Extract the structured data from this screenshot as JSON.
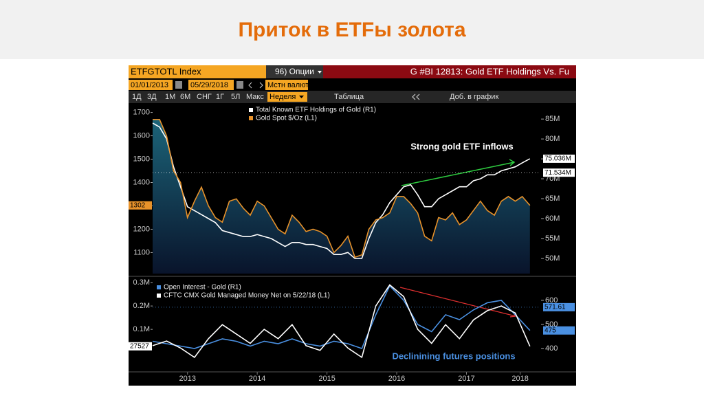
{
  "slide_title": "Приток в ETFы золота",
  "toolbar": {
    "security": "ETFGTOTL Index",
    "options": "96) Опции",
    "chart_title": "G #BI 12813: Gold ETF Holdings Vs. Fu",
    "start_date": "01/01/2013",
    "end_date": "05/29/2018",
    "currency": "Мстн валют",
    "periods": [
      "1Д",
      "3Д",
      "1М",
      "6М",
      "СНГ",
      "1Г",
      "5Л",
      "Макс"
    ],
    "frequency": "Неделя",
    "table": "Таблица",
    "add_to_chart": "Доб. в график"
  },
  "chart_data": [
    {
      "type": "line",
      "xlim": [
        2013,
        2018.55
      ],
      "x": [
        2013.0,
        2013.1,
        2013.2,
        2013.3,
        2013.4,
        2013.5,
        2013.6,
        2013.7,
        2013.8,
        2013.9,
        2014.0,
        2014.1,
        2014.2,
        2014.3,
        2014.4,
        2014.5,
        2014.6,
        2014.7,
        2014.8,
        2014.9,
        2015.0,
        2015.1,
        2015.2,
        2015.3,
        2015.4,
        2015.5,
        2015.6,
        2015.7,
        2015.8,
        2015.9,
        2016.0,
        2016.1,
        2016.2,
        2016.3,
        2016.4,
        2016.5,
        2016.6,
        2016.7,
        2016.8,
        2016.9,
        2017.0,
        2017.1,
        2017.2,
        2017.3,
        2017.4,
        2017.5,
        2017.6,
        2017.7,
        2017.8,
        2017.9,
        2018.0,
        2018.1,
        2018.2,
        2018.3,
        2018.41
      ],
      "series": [
        {
          "name": "Total Known ETF Holdings of Gold (R1)",
          "color": "#ffffff",
          "axis": "y2",
          "values": [
            84,
            83,
            80,
            73,
            68,
            63,
            62,
            61,
            60,
            59,
            57,
            56.5,
            56,
            55.5,
            55.5,
            56,
            55.5,
            55,
            54,
            53,
            54,
            54,
            53.5,
            53.5,
            53,
            52.5,
            51,
            51,
            51.5,
            50,
            50,
            55,
            59,
            61,
            64,
            66,
            68,
            68.5,
            66,
            63,
            63,
            65,
            66,
            67,
            68,
            68,
            69.5,
            70,
            71,
            71,
            72,
            72.5,
            73,
            74,
            75.036
          ]
        },
        {
          "name": "Gold Spot $/Oz (L1)",
          "color": "#e8922a",
          "axis": "y",
          "fill": true,
          "values": [
            1670,
            1670,
            1600,
            1450,
            1400,
            1250,
            1320,
            1380,
            1300,
            1250,
            1230,
            1320,
            1330,
            1290,
            1260,
            1320,
            1300,
            1250,
            1200,
            1180,
            1260,
            1230,
            1190,
            1200,
            1190,
            1170,
            1100,
            1130,
            1170,
            1080,
            1090,
            1200,
            1240,
            1250,
            1270,
            1340,
            1340,
            1310,
            1270,
            1170,
            1150,
            1250,
            1240,
            1270,
            1220,
            1240,
            1280,
            1320,
            1280,
            1260,
            1320,
            1340,
            1320,
            1340,
            1302
          ]
        }
      ],
      "ylim": [
        1010,
        1740
      ],
      "yticks": [
        1100,
        1200,
        1300,
        1400,
        1500,
        1600,
        1700
      ],
      "y2lim": [
        46.2,
        89
      ],
      "y2ticks": [
        {
          "value": 50,
          "label": "50M"
        },
        {
          "value": 55,
          "label": "55M"
        },
        {
          "value": 60,
          "label": "60M"
        },
        {
          "value": 65,
          "label": "65M"
        },
        {
          "value": 70,
          "label": "70M"
        },
        {
          "value": 75,
          "label": "75M"
        },
        {
          "value": 80,
          "label": "80M"
        },
        {
          "value": 85,
          "label": "85M"
        }
      ],
      "last_labels": [
        {
          "value": 1302,
          "label": "1302",
          "axis": "y",
          "color": "#e8922a"
        },
        {
          "value": 75.036,
          "label": "75.036M",
          "axis": "y2",
          "color": "#ffffff"
        },
        {
          "value": 71.534,
          "label": "71.534M",
          "axis": "y2",
          "color": "#ffffff",
          "reference_line": true
        }
      ],
      "annotation": "Strong gold ETF inflows"
    },
    {
      "type": "line",
      "xlim": [
        2013,
        2018.55
      ],
      "x": [
        2013.0,
        2013.2,
        2013.4,
        2013.6,
        2013.8,
        2014.0,
        2014.2,
        2014.4,
        2014.6,
        2014.8,
        2015.0,
        2015.2,
        2015.4,
        2015.6,
        2015.8,
        2016.0,
        2016.2,
        2016.4,
        2016.6,
        2016.8,
        2017.0,
        2017.2,
        2017.4,
        2017.6,
        2017.8,
        2018.0,
        2018.2,
        2018.41
      ],
      "series": [
        {
          "name": "Open Interest - Gold (R1)",
          "color": "#4a90e2",
          "axis": "y2",
          "values": [
            430,
            420,
            410,
            400,
            420,
            440,
            430,
            410,
            430,
            420,
            440,
            420,
            410,
            430,
            420,
            400,
            540,
            660,
            600,
            500,
            470,
            540,
            520,
            560,
            590,
            600,
            540,
            475
          ]
        },
        {
          "name": "CFTC CMX Gold Managed Money Net  on 5/22/18 (L1)",
          "color": "#ffffff",
          "axis": "y",
          "values": [
            0.03,
            0.05,
            0.02,
            -0.02,
            0.06,
            0.12,
            0.08,
            0.04,
            0.1,
            0.06,
            0.12,
            0.03,
            0.01,
            0.08,
            0.02,
            -0.02,
            0.2,
            0.29,
            0.24,
            0.1,
            0.04,
            0.12,
            0.06,
            0.14,
            0.18,
            0.2,
            0.17,
            0.027527
          ]
        }
      ],
      "ylim": [
        -0.079,
        0.318
      ],
      "yticks": [
        {
          "value": 0.1,
          "label": "0.1M"
        },
        {
          "value": 0.2,
          "label": "0.2M"
        },
        {
          "value": 0.3,
          "label": "0.3M"
        }
      ],
      "y2lim": [
        306,
        691
      ],
      "y2ticks": [
        400,
        500,
        600
      ],
      "xticks": [
        {
          "value": 2013.5,
          "label": "2013"
        },
        {
          "value": 2014.5,
          "label": "2014"
        },
        {
          "value": 2015.5,
          "label": "2015"
        },
        {
          "value": 2016.5,
          "label": "2016"
        },
        {
          "value": 2017.5,
          "label": "2017"
        },
        {
          "value": 2018.27,
          "label": "2018"
        }
      ],
      "last_labels": [
        {
          "value": 571.61,
          "label": "571.61",
          "axis": "y2",
          "color": "#4a90e2",
          "reference_line": true
        },
        {
          "value": 475,
          "label": "475",
          "axis": "y2",
          "color": "#4a90e2"
        },
        {
          "value": 0.027527,
          "label": "27527",
          "axis": "y",
          "color": "#ffffff"
        }
      ],
      "annotation": "Declinining futures positions"
    }
  ]
}
